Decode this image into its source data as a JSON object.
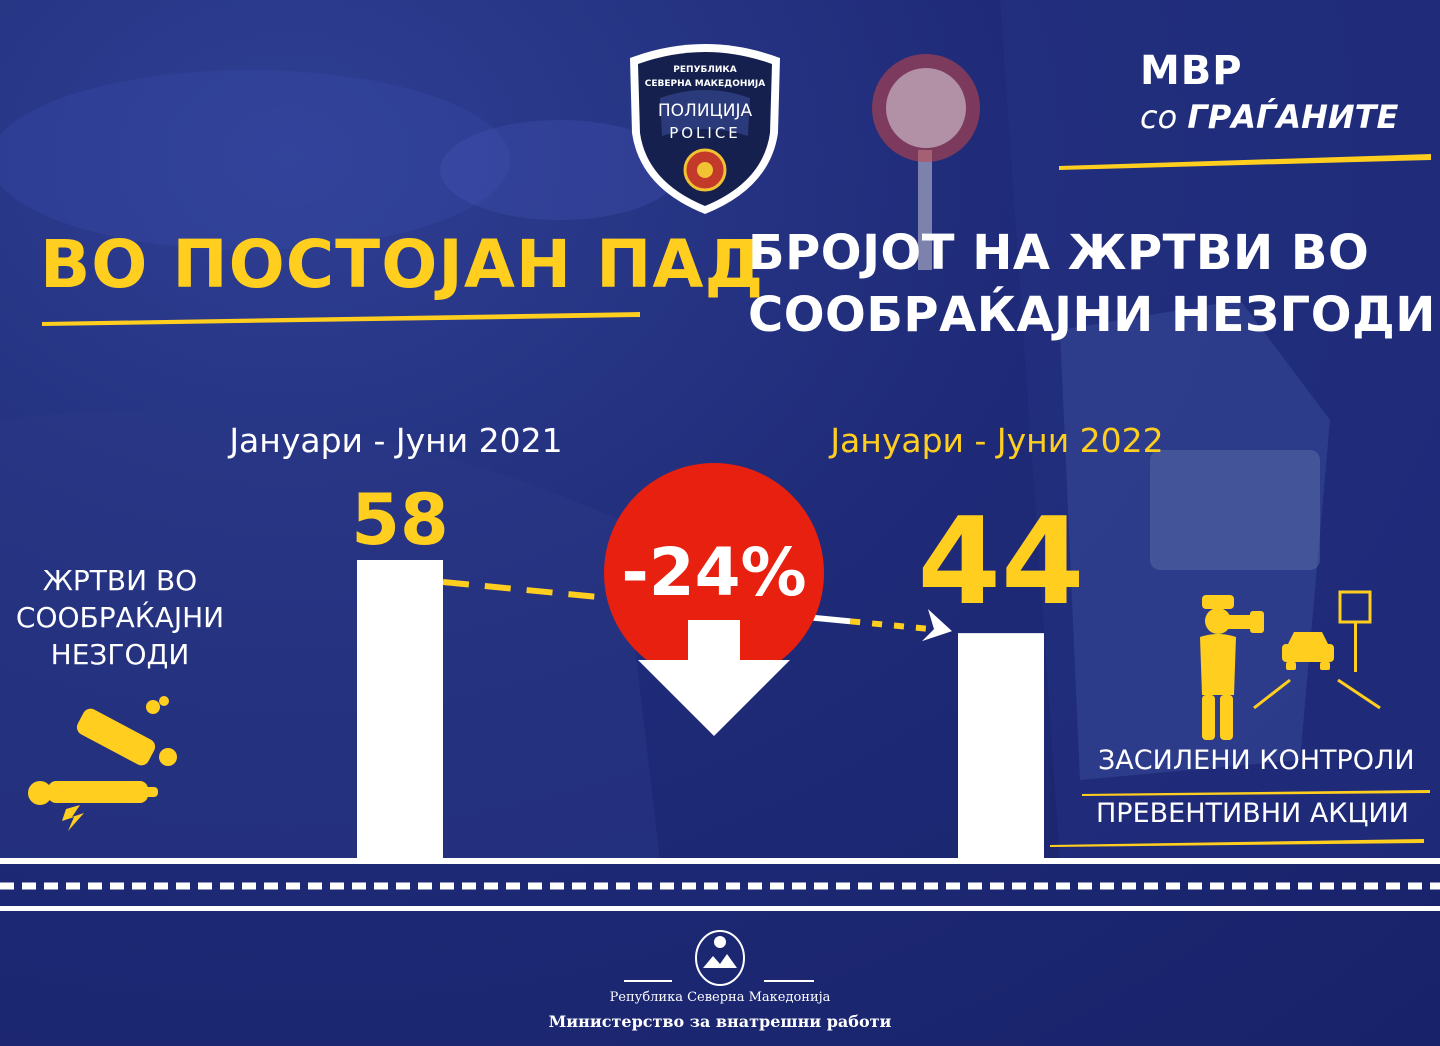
{
  "headline": {
    "left": "ВО ПОСТОЈАН ПАД",
    "right_line1": "БРОЈОТ НА ЖРТВИ ВО",
    "right_line2": "СООБРАЌАЈНИ НЕЗГОДИ"
  },
  "brand": {
    "title": "МВР",
    "sub_prefix": "со",
    "sub_main": "ГРАЃАНИТЕ"
  },
  "police_badge": {
    "line1": "РЕПУБЛИКА",
    "line2": "СЕВЕРНА МАКЕДОНИЈА",
    "line3": "ПОЛИЦИЈА",
    "line4": "POLICE"
  },
  "side_label": "ЖРТВИ ВО СООБРАЌАЈНИ НЕЗГОДИ",
  "actions": [
    "ЗАСИЛЕНИ КОНТРОЛИ",
    "ПРЕВЕНТИВНИ АКЦИИ"
  ],
  "footer": {
    "government": "Република Северна Македонија",
    "ministry": "Министерство за внатрешни работи"
  },
  "colors": {
    "background": "#1f2b78",
    "accent_yellow": "#ffce1f",
    "change_red": "#e8200f",
    "bar_white": "#ffffff"
  },
  "icons": [
    "police-emblem-icon",
    "stop-sign-icon",
    "crash-victim-icon",
    "speed-control-officer-icon",
    "car-icon",
    "road-sign-icon",
    "coat-of-arms-icon"
  ],
  "chart_data": {
    "type": "bar",
    "categories": [
      "Јануари - Јуни 2021",
      "Јануари - Јуни 2022"
    ],
    "values": [
      58,
      44
    ],
    "value_labels": [
      "58",
      "44"
    ],
    "change_label": "-24%",
    "change_direction": "down",
    "category_colors": [
      "#ffffff",
      "#ffce1f"
    ],
    "ylim": [
      0,
      58
    ],
    "grid": false,
    "legend": "none"
  }
}
